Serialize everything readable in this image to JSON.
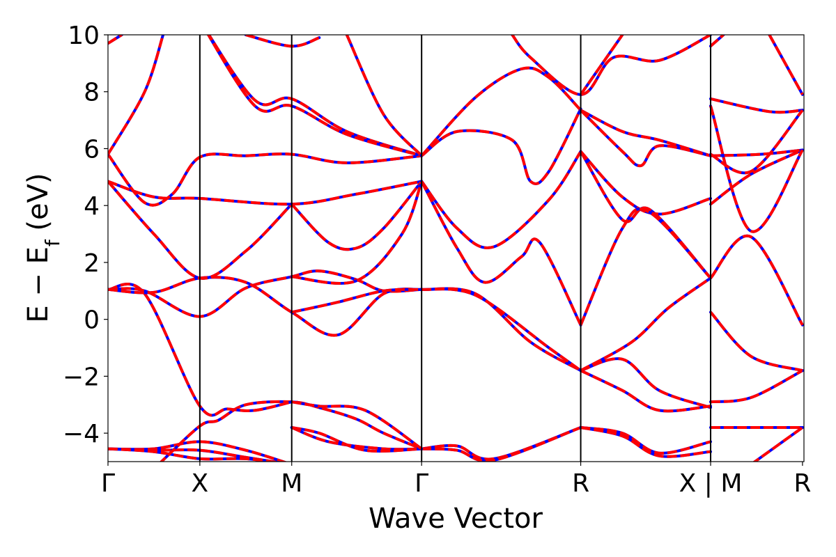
{
  "chart_data": {
    "type": "line",
    "xlabel": "Wave Vector",
    "ylabel": "E − E",
    "ylabel_sub": "f",
    "ylabel_unit": " (eV)",
    "ylim": [
      -5,
      10
    ],
    "yticks": [
      -4,
      -2,
      0,
      2,
      4,
      6,
      8,
      10
    ],
    "ytick_labels": [
      "−4",
      "−2",
      "0",
      "2",
      "4",
      "6",
      "8",
      "10"
    ],
    "xlim": [
      0,
      7.576
    ],
    "kpoints": [
      {
        "x": 0.0,
        "label": "Γ"
      },
      {
        "x": 1.0,
        "label": "X"
      },
      {
        "x": 2.0,
        "label": "M"
      },
      {
        "x": 3.414,
        "label": "Γ"
      },
      {
        "x": 5.146,
        "label": "R"
      },
      {
        "x": 6.56,
        "label": "X | M"
      },
      {
        "x": 7.56,
        "label": "R"
      }
    ],
    "grid": false,
    "colors": {
      "series_a": "#0000ff",
      "series_b": "#ff0000"
    },
    "bands": [
      [
        [
          0,
          -4.55
        ],
        [
          0.5,
          -4.55
        ],
        [
          1.0,
          -4.3
        ],
        [
          1.5,
          -4.6
        ],
        [
          2.0,
          -5.1
        ]
      ],
      [
        [
          0,
          -4.55
        ],
        [
          0.5,
          -4.6
        ],
        [
          1.0,
          -4.6
        ],
        [
          1.5,
          -4.85
        ],
        [
          2.0,
          -5.1
        ]
      ],
      [
        [
          0,
          -4.55
        ],
        [
          0.5,
          -4.65
        ],
        [
          1.0,
          -4.9
        ],
        [
          1.5,
          -4.9
        ],
        [
          2.0,
          -5.1
        ]
      ],
      [
        [
          0.55,
          -5.1
        ],
        [
          1.0,
          -3.75
        ],
        [
          1.2,
          -3.55
        ],
        [
          1.5,
          -3.0
        ],
        [
          2.0,
          -2.9
        ],
        [
          2.3,
          -3.1
        ],
        [
          2.7,
          -3.5
        ],
        [
          3.0,
          -4.0
        ],
        [
          3.414,
          -4.55
        ]
      ],
      [
        [
          2.0,
          -3.8
        ],
        [
          2.4,
          -4.3
        ],
        [
          3.0,
          -4.55
        ],
        [
          3.414,
          -4.55
        ]
      ],
      [
        [
          2.0,
          -3.8
        ],
        [
          2.3,
          -4.0
        ],
        [
          2.8,
          -4.6
        ],
        [
          3.414,
          -4.55
        ]
      ],
      [
        [
          3.414,
          -4.55
        ],
        [
          3.8,
          -4.45
        ],
        [
          4.2,
          -4.9
        ],
        [
          5.146,
          -3.8
        ]
      ],
      [
        [
          3.414,
          -4.55
        ],
        [
          3.8,
          -4.6
        ],
        [
          4.2,
          -4.95
        ],
        [
          5.146,
          -3.8
        ]
      ],
      [
        [
          5.146,
          -3.8
        ],
        [
          5.6,
          -4.0
        ],
        [
          6.0,
          -4.7
        ],
        [
          6.56,
          -4.3
        ]
      ],
      [
        [
          5.146,
          -3.8
        ],
        [
          5.6,
          -4.1
        ],
        [
          6.0,
          -4.8
        ],
        [
          6.56,
          -4.65
        ]
      ],
      [
        [
          0,
          1.05
        ],
        [
          0.4,
          0.9
        ],
        [
          1.0,
          -3.05
        ],
        [
          1.3,
          -3.15
        ],
        [
          1.6,
          -3.2
        ],
        [
          2.0,
          -2.9
        ]
      ],
      [
        [
          2.0,
          -2.9
        ],
        [
          2.3,
          -3.05
        ],
        [
          2.8,
          -3.2
        ],
        [
          3.414,
          -4.55
        ]
      ],
      [
        [
          0,
          1.05
        ],
        [
          0.4,
          1.0
        ],
        [
          1.0,
          0.1
        ],
        [
          1.5,
          1.1
        ],
        [
          2.0,
          1.5
        ],
        [
          2.3,
          1.7
        ],
        [
          2.7,
          1.4
        ],
        [
          3.0,
          1.0
        ],
        [
          3.414,
          1.05
        ]
      ],
      [
        [
          0,
          1.05
        ],
        [
          0.5,
          0.95
        ],
        [
          1.0,
          1.45
        ],
        [
          1.5,
          1.3
        ],
        [
          2.0,
          0.25
        ],
        [
          2.5,
          -0.55
        ],
        [
          3.0,
          0.9
        ],
        [
          3.414,
          1.05
        ]
      ],
      [
        [
          2.0,
          0.25
        ],
        [
          2.5,
          0.6
        ],
        [
          3.0,
          1.0
        ],
        [
          3.414,
          1.05
        ]
      ],
      [
        [
          3.414,
          1.05
        ],
        [
          4.0,
          0.9
        ],
        [
          4.6,
          -0.8
        ],
        [
          5.146,
          -1.8
        ]
      ],
      [
        [
          3.414,
          1.05
        ],
        [
          4.0,
          0.85
        ],
        [
          4.8,
          -1.0
        ],
        [
          5.146,
          -1.8
        ]
      ],
      [
        [
          5.146,
          -1.8
        ],
        [
          5.6,
          -1.4
        ],
        [
          6.0,
          -2.5
        ],
        [
          6.56,
          -3.1
        ]
      ],
      [
        [
          5.146,
          -1.8
        ],
        [
          5.6,
          -2.5
        ],
        [
          6.0,
          -3.2
        ],
        [
          6.56,
          -3.05
        ]
      ],
      [
        [
          5.146,
          -1.8
        ],
        [
          5.7,
          -0.8
        ],
        [
          6.1,
          0.4
        ],
        [
          6.56,
          1.45
        ]
      ],
      [
        [
          0,
          4.85
        ],
        [
          0.5,
          3.0
        ],
        [
          1.0,
          1.45
        ],
        [
          1.5,
          2.4
        ],
        [
          2.0,
          4.05
        ]
      ],
      [
        [
          0,
          4.85
        ],
        [
          0.5,
          4.3
        ],
        [
          1.0,
          4.25
        ],
        [
          2.0,
          4.05
        ],
        [
          2.7,
          4.4
        ],
        [
          3.414,
          4.85
        ]
      ],
      [
        [
          0,
          5.8
        ],
        [
          0.4,
          4.1
        ],
        [
          0.7,
          4.4
        ],
        [
          1.0,
          5.7
        ],
        [
          1.5,
          5.75
        ],
        [
          2.0,
          5.8
        ],
        [
          2.6,
          5.5
        ],
        [
          3.414,
          5.75
        ]
      ],
      [
        [
          2.0,
          4.05
        ],
        [
          2.4,
          2.7
        ],
        [
          2.7,
          2.5
        ],
        [
          3.0,
          3.2
        ],
        [
          3.414,
          4.85
        ]
      ],
      [
        [
          2.0,
          1.5
        ],
        [
          2.7,
          1.35
        ],
        [
          3.2,
          3.0
        ],
        [
          3.414,
          4.85
        ]
      ],
      [
        [
          3.414,
          4.85
        ],
        [
          3.8,
          3.2
        ],
        [
          4.2,
          2.55
        ],
        [
          4.8,
          4.2
        ],
        [
          5.146,
          5.9
        ]
      ],
      [
        [
          3.414,
          4.85
        ],
        [
          3.8,
          2.5
        ],
        [
          4.1,
          1.3
        ],
        [
          4.5,
          2.2
        ],
        [
          4.7,
          2.7
        ],
        [
          5.146,
          -0.2
        ]
      ],
      [
        [
          5.146,
          5.9
        ],
        [
          5.6,
          3.5
        ],
        [
          5.9,
          3.85
        ],
        [
          6.56,
          1.45
        ]
      ],
      [
        [
          5.146,
          5.9
        ],
        [
          5.6,
          4.3
        ],
        [
          6.0,
          3.7
        ],
        [
          6.56,
          4.25
        ]
      ],
      [
        [
          5.146,
          -0.2
        ],
        [
          5.6,
          3.2
        ],
        [
          5.9,
          3.75
        ],
        [
          6.56,
          1.45
        ]
      ],
      [
        [
          0,
          5.8
        ],
        [
          0.4,
          8.0
        ],
        [
          0.6,
          10.0
        ]
      ],
      [
        [
          0,
          9.7
        ],
        [
          0.15,
          10.0
        ]
      ],
      [
        [
          1.0,
          10.5
        ],
        [
          1.6,
          7.7
        ],
        [
          2.0,
          7.75
        ],
        [
          2.6,
          6.6
        ],
        [
          3.414,
          5.75
        ]
      ],
      [
        [
          1.0,
          10.5
        ],
        [
          1.6,
          7.5
        ],
        [
          2.0,
          7.5
        ],
        [
          2.6,
          6.5
        ],
        [
          3.414,
          5.75
        ]
      ],
      [
        [
          1.5,
          10.0
        ],
        [
          2.0,
          9.6
        ],
        [
          2.3,
          9.9
        ]
      ],
      [
        [
          2.6,
          10.0
        ],
        [
          3.0,
          7.2
        ],
        [
          3.414,
          5.75
        ]
      ],
      [
        [
          3.414,
          5.75
        ],
        [
          3.8,
          6.6
        ],
        [
          4.4,
          6.3
        ],
        [
          4.6,
          4.85
        ],
        [
          4.8,
          5.2
        ],
        [
          5.146,
          7.4
        ]
      ],
      [
        [
          3.414,
          5.75
        ],
        [
          4.0,
          7.8
        ],
        [
          4.5,
          8.8
        ],
        [
          4.8,
          8.5
        ],
        [
          5.146,
          7.35
        ]
      ],
      [
        [
          4.4,
          10.0
        ],
        [
          4.6,
          9.2
        ],
        [
          5.146,
          7.9
        ],
        [
          5.5,
          9.2
        ],
        [
          6.0,
          9.1
        ],
        [
          6.56,
          10.0
        ]
      ],
      [
        [
          5.146,
          7.35
        ],
        [
          5.6,
          6.6
        ],
        [
          6.0,
          6.3
        ],
        [
          6.56,
          5.75
        ]
      ],
      [
        [
          5.146,
          7.35
        ],
        [
          5.6,
          5.9
        ],
        [
          5.8,
          5.4
        ],
        [
          6.0,
          6.1
        ],
        [
          6.56,
          5.75
        ]
      ],
      [
        [
          5.146,
          7.9
        ],
        [
          5.6,
          10.0
        ]
      ],
      [
        [
          6.56,
          -3.8
        ],
        [
          7.1,
          -3.8
        ],
        [
          7.56,
          -3.8
        ]
      ],
      [
        [
          6.56,
          -2.9
        ],
        [
          7.0,
          -2.75
        ],
        [
          7.56,
          -1.8
        ]
      ],
      [
        [
          7.0,
          -5.1
        ],
        [
          7.56,
          -3.8
        ]
      ],
      [
        [
          6.56,
          0.25
        ],
        [
          7.0,
          -1.3
        ],
        [
          7.56,
          -1.8
        ]
      ],
      [
        [
          6.56,
          1.45
        ],
        [
          7.0,
          2.9
        ],
        [
          7.56,
          -0.2
        ]
      ],
      [
        [
          6.56,
          4.05
        ],
        [
          7.0,
          5.1
        ],
        [
          7.56,
          5.95
        ]
      ],
      [
        [
          6.56,
          5.75
        ],
        [
          7.1,
          5.8
        ],
        [
          7.56,
          5.95
        ]
      ],
      [
        [
          6.56,
          7.75
        ],
        [
          7.2,
          7.3
        ],
        [
          7.56,
          7.35
        ]
      ],
      [
        [
          6.56,
          7.5
        ],
        [
          7.0,
          3.1
        ],
        [
          7.56,
          5.95
        ]
      ],
      [
        [
          6.56,
          5.8
        ],
        [
          7.0,
          5.2
        ],
        [
          7.56,
          7.35
        ]
      ],
      [
        [
          6.56,
          9.6
        ],
        [
          6.7,
          10.0
        ]
      ],
      [
        [
          7.2,
          10.0
        ],
        [
          7.56,
          7.9
        ]
      ]
    ]
  }
}
